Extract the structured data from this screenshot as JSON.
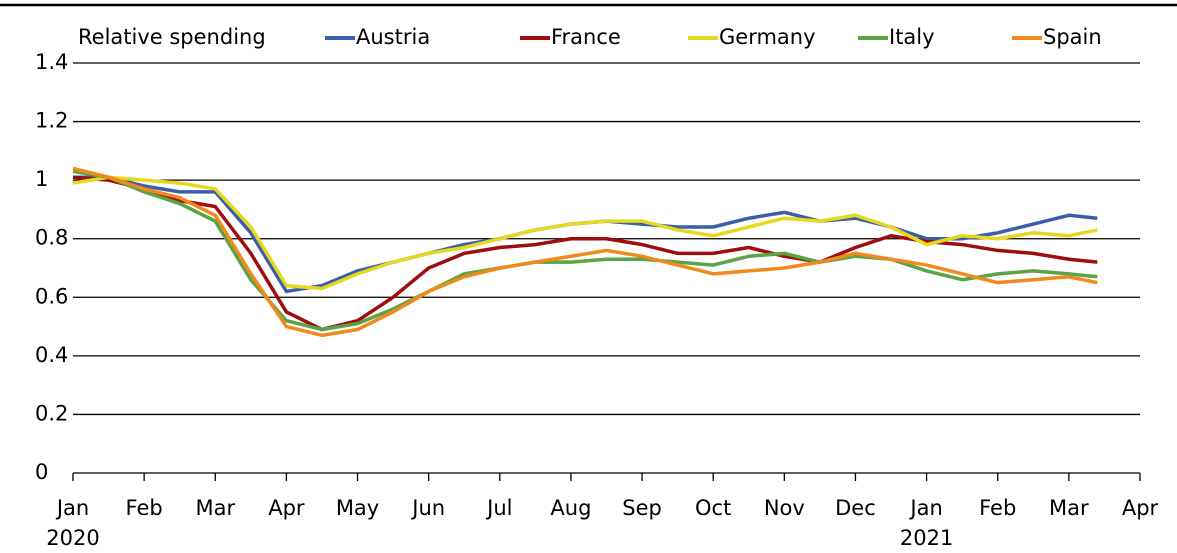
{
  "chart_data": {
    "type": "line",
    "y_label": "Relative spending",
    "x": [
      0,
      0.5,
      1,
      1.5,
      2,
      2.5,
      3,
      3.5,
      4,
      4.5,
      5,
      5.5,
      6,
      6.5,
      7,
      7.5,
      8,
      8.5,
      9,
      9.5,
      10,
      10.5,
      11,
      11.5,
      12,
      12.5,
      13,
      13.5,
      14,
      14.4
    ],
    "series": [
      {
        "name": "Austria",
        "color": "#3a5fa8",
        "values": [
          1.01,
          1.01,
          0.98,
          0.96,
          0.96,
          0.82,
          0.62,
          0.64,
          0.69,
          0.72,
          0.75,
          0.78,
          0.8,
          0.83,
          0.85,
          0.86,
          0.85,
          0.84,
          0.84,
          0.87,
          0.89,
          0.86,
          0.87,
          0.84,
          0.8,
          0.8,
          0.82,
          0.85,
          0.88,
          0.87
        ]
      },
      {
        "name": "France",
        "color": "#a00d0d",
        "values": [
          1.01,
          1.0,
          0.97,
          0.93,
          0.91,
          0.75,
          0.55,
          0.49,
          0.52,
          0.6,
          0.7,
          0.75,
          0.77,
          0.78,
          0.8,
          0.8,
          0.78,
          0.75,
          0.75,
          0.77,
          0.74,
          0.72,
          0.77,
          0.81,
          0.79,
          0.78,
          0.76,
          0.75,
          0.73,
          0.72
        ]
      },
      {
        "name": "Germany",
        "color": "#e6d81e",
        "values": [
          0.99,
          1.01,
          1.0,
          0.99,
          0.97,
          0.84,
          0.64,
          0.63,
          0.68,
          0.72,
          0.75,
          0.77,
          0.8,
          0.83,
          0.85,
          0.86,
          0.86,
          0.83,
          0.81,
          0.84,
          0.87,
          0.86,
          0.88,
          0.84,
          0.78,
          0.81,
          0.8,
          0.82,
          0.81,
          0.83
        ]
      },
      {
        "name": "Italy",
        "color": "#5aa445",
        "values": [
          1.03,
          1.01,
          0.96,
          0.92,
          0.86,
          0.66,
          0.52,
          0.49,
          0.51,
          0.56,
          0.62,
          0.68,
          0.7,
          0.72,
          0.72,
          0.73,
          0.73,
          0.72,
          0.71,
          0.74,
          0.75,
          0.72,
          0.74,
          0.73,
          0.69,
          0.66,
          0.68,
          0.69,
          0.68,
          0.67
        ]
      },
      {
        "name": "Spain",
        "color": "#f08a1c",
        "values": [
          1.04,
          1.01,
          0.97,
          0.94,
          0.88,
          0.68,
          0.5,
          0.47,
          0.49,
          0.55,
          0.62,
          0.67,
          0.7,
          0.72,
          0.74,
          0.76,
          0.74,
          0.71,
          0.68,
          0.69,
          0.7,
          0.72,
          0.75,
          0.73,
          0.71,
          0.68,
          0.65,
          0.66,
          0.67,
          0.65
        ]
      }
    ],
    "xlim": [
      0,
      15
    ],
    "xticks": [
      {
        "value": 0,
        "label": "Jan",
        "sublabel": "2020"
      },
      {
        "value": 1,
        "label": "Feb"
      },
      {
        "value": 2,
        "label": "Mar"
      },
      {
        "value": 3,
        "label": "Apr"
      },
      {
        "value": 4,
        "label": "May"
      },
      {
        "value": 5,
        "label": "Jun"
      },
      {
        "value": 6,
        "label": "Jul"
      },
      {
        "value": 7,
        "label": "Aug"
      },
      {
        "value": 8,
        "label": "Sep"
      },
      {
        "value": 9,
        "label": "Oct"
      },
      {
        "value": 10,
        "label": "Nov"
      },
      {
        "value": 11,
        "label": "Dec"
      },
      {
        "value": 12,
        "label": "Jan",
        "sublabel": "2021"
      },
      {
        "value": 13,
        "label": "Feb"
      },
      {
        "value": 14,
        "label": "Mar"
      },
      {
        "value": 15,
        "label": "Apr"
      }
    ],
    "ylim": [
      0,
      1.4
    ],
    "yticks": [
      0,
      0.2,
      0.4,
      0.6,
      0.8,
      1,
      1.2,
      1.4
    ],
    "grid": true
  }
}
